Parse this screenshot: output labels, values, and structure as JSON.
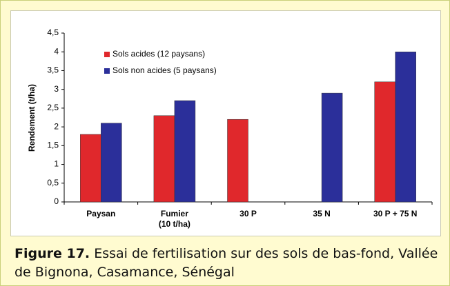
{
  "chart_data": {
    "type": "bar",
    "figure_label": "Figure 17.",
    "caption": "Essai de fertilisation sur des sols de bas-fond, Vallée de Bignona, Casamance, Sénégal",
    "ylabel": "Rendement (t/ha)",
    "categories": [
      "Paysan",
      "Fumier\n(10 t/ha)",
      "30 P",
      "35 N",
      "30 P + 75 N"
    ],
    "series": [
      {
        "name": "Sols acides (12 paysans)",
        "color": "#e0282c",
        "values": [
          1.8,
          2.3,
          2.2,
          null,
          3.2
        ]
      },
      {
        "name": "Sols non acides (5 paysans)",
        "color": "#2b2f9a",
        "values": [
          2.1,
          2.7,
          null,
          2.9,
          4.0
        ]
      }
    ],
    "ylim": [
      0,
      4.5
    ],
    "yticks": [
      0,
      {
        "value": 0.5,
        "label": "0,5"
      },
      1,
      {
        "value": 1.5,
        "label": "1,5"
      },
      2,
      {
        "value": 2.5,
        "label": "2,5"
      },
      3,
      {
        "value": 3.5,
        "label": "3,5"
      },
      4,
      {
        "value": 4.5,
        "label": "4,5"
      }
    ],
    "legend": "upper left"
  }
}
